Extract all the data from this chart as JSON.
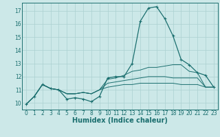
{
  "bg_color": "#cce8e8",
  "grid_color": "#aad0d0",
  "line_color": "#1a6e6e",
  "xlabel": "Humidex (Indice chaleur)",
  "xlim": [
    -0.5,
    23.5
  ],
  "ylim": [
    9.5,
    17.6
  ],
  "yticks": [
    10,
    11,
    12,
    13,
    14,
    15,
    16,
    17
  ],
  "xticks": [
    0,
    1,
    2,
    3,
    4,
    5,
    6,
    7,
    8,
    9,
    10,
    11,
    12,
    13,
    14,
    15,
    16,
    17,
    18,
    19,
    20,
    21,
    22,
    23
  ],
  "series": [
    [
      9.9,
      10.5,
      11.4,
      11.1,
      11.0,
      10.3,
      10.4,
      10.3,
      10.1,
      10.5,
      11.9,
      12.0,
      12.0,
      13.0,
      16.2,
      17.2,
      17.3,
      16.4,
      15.1,
      13.3,
      12.9,
      12.3,
      12.1,
      11.2
    ],
    [
      9.9,
      10.5,
      11.4,
      11.1,
      11.0,
      10.7,
      10.7,
      10.8,
      10.7,
      11.0,
      11.8,
      11.9,
      12.1,
      12.4,
      12.5,
      12.7,
      12.7,
      12.8,
      12.9,
      12.9,
      12.4,
      12.3,
      11.2,
      11.2
    ],
    [
      9.9,
      10.5,
      11.4,
      11.1,
      11.0,
      10.7,
      10.7,
      10.8,
      10.7,
      11.0,
      11.5,
      11.6,
      11.7,
      11.8,
      11.9,
      12.0,
      12.0,
      12.0,
      11.9,
      11.9,
      11.9,
      11.9,
      11.2,
      11.2
    ],
    [
      9.9,
      10.5,
      11.4,
      11.1,
      11.0,
      10.7,
      10.7,
      10.8,
      10.7,
      11.0,
      11.2,
      11.3,
      11.4,
      11.4,
      11.5,
      11.5,
      11.5,
      11.5,
      11.5,
      11.4,
      11.4,
      11.4,
      11.2,
      11.2
    ]
  ],
  "tick_fontsize": 5.5,
  "label_fontsize": 7.0
}
